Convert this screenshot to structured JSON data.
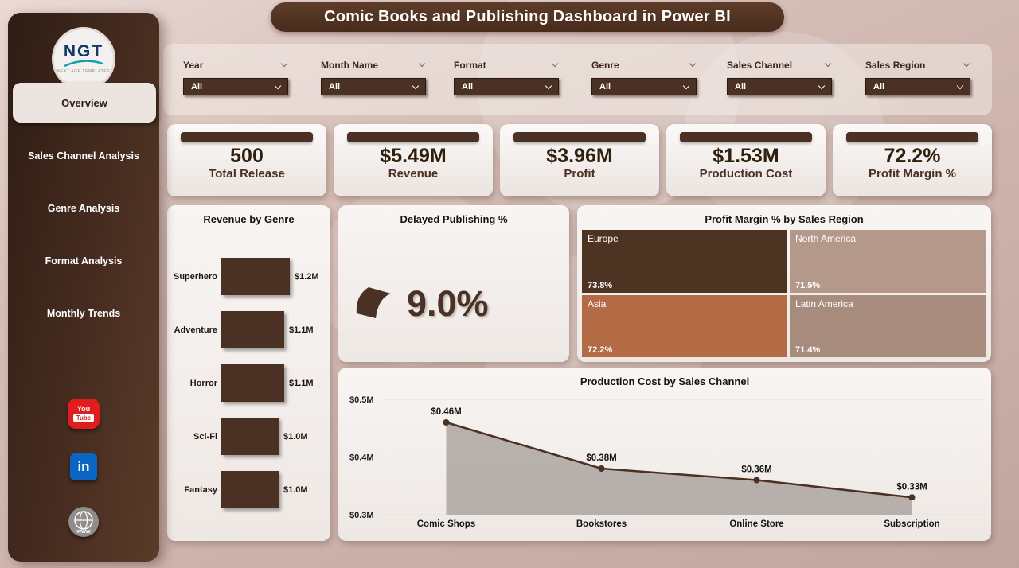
{
  "title": "Comic Books and Publishing Dashboard in Power BI",
  "logo": {
    "text": "NGT",
    "subtext": "NEXT AGE TEMPLATES"
  },
  "colors": {
    "brand_dark": "#4a3124",
    "background": "#d2bcb6",
    "card": "#f4f0ee",
    "youtube_red": "#e01c1c",
    "linkedin_blue": "#0a66c2",
    "area_fill": "#b3aca9"
  },
  "sidebar": {
    "active": "Overview",
    "items": [
      {
        "label": "Overview"
      },
      {
        "label": "Sales Channel Analysis"
      },
      {
        "label": "Genre Analysis"
      },
      {
        "label": "Format Analysis"
      },
      {
        "label": "Monthly Trends"
      }
    ],
    "social": [
      {
        "name": "youtube",
        "line1": "You",
        "line2": "Tube"
      },
      {
        "name": "linkedin",
        "text": "in"
      },
      {
        "name": "web",
        "text": "www"
      }
    ]
  },
  "filters": [
    {
      "label": "Year",
      "value": "All"
    },
    {
      "label": "Month Name",
      "value": "All"
    },
    {
      "label": "Format",
      "value": "All"
    },
    {
      "label": "Genre",
      "value": "All"
    },
    {
      "label": "Sales Channel",
      "value": "All"
    },
    {
      "label": "Sales Region",
      "value": "All"
    }
  ],
  "kpis": [
    {
      "value": "500",
      "label": "Total Release"
    },
    {
      "value": "$5.49M",
      "label": "Revenue"
    },
    {
      "value": "$3.96M",
      "label": "Profit"
    },
    {
      "value": "$1.53M",
      "label": "Production Cost"
    },
    {
      "value": "72.2%",
      "label": "Profit Margin %"
    }
  ],
  "chart_data": [
    {
      "type": "bar",
      "title": "Revenue by Genre",
      "orientation": "horizontal",
      "categories": [
        "Superhero",
        "Adventure",
        "Horror",
        "Sci-Fi",
        "Fantasy"
      ],
      "values": [
        1.2,
        1.1,
        1.1,
        1.0,
        1.0
      ],
      "labels": [
        "$1.2M",
        "$1.1M",
        "$1.1M",
        "$1.0M",
        "$1.0M"
      ],
      "unit": "$M"
    },
    {
      "type": "gauge",
      "title": "Delayed Publishing %",
      "value": 9.0,
      "label": "9.0%"
    },
    {
      "type": "treemap",
      "title": "Profit Margin % by Sales Region",
      "cells": [
        {
          "name": "Europe",
          "value": 73.8,
          "label": "73.8%",
          "color": "#4c3322"
        },
        {
          "name": "North America",
          "value": 71.5,
          "label": "71.5%",
          "color": "#b4988a"
        },
        {
          "name": "Asia",
          "value": 72.2,
          "label": "72.2%",
          "color": "#b26b45"
        },
        {
          "name": "Latin America",
          "value": 71.4,
          "label": "71.4%",
          "color": "#a78b7c"
        }
      ]
    },
    {
      "type": "area",
      "title": "Production Cost by Sales Channel",
      "categories": [
        "Comic Shops",
        "Bookstores",
        "Online Store",
        "Subscription"
      ],
      "values": [
        0.46,
        0.38,
        0.36,
        0.33
      ],
      "labels": [
        "$0.46M",
        "$0.38M",
        "$0.36M",
        "$0.33M"
      ],
      "y_ticks": [
        "$0.5M",
        "$0.4M",
        "$0.3M"
      ],
      "ylim": [
        0.3,
        0.5
      ],
      "xlabel": "",
      "ylabel": ""
    }
  ]
}
